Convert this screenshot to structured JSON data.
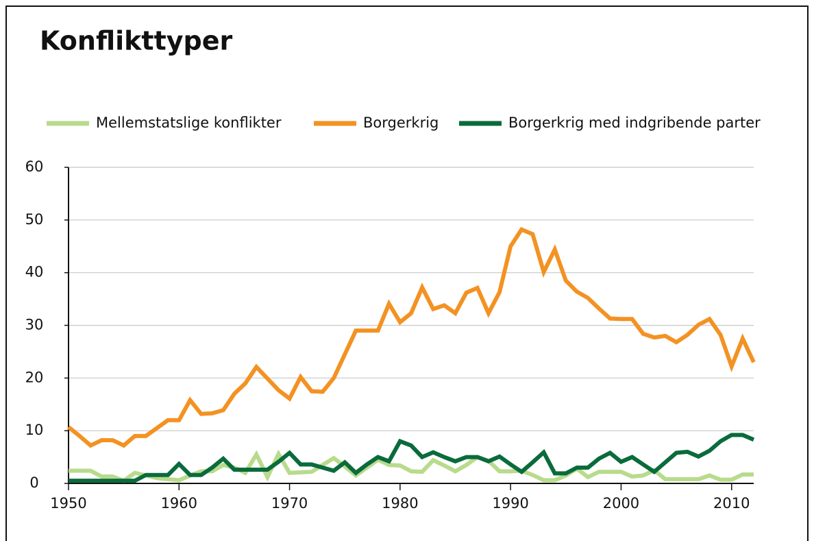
{
  "chart_data": {
    "type": "line",
    "title": "Konflikttyper",
    "x": [
      1950,
      1951,
      1952,
      1953,
      1954,
      1955,
      1956,
      1957,
      1958,
      1959,
      1960,
      1961,
      1962,
      1963,
      1964,
      1965,
      1966,
      1967,
      1968,
      1969,
      1970,
      1971,
      1972,
      1973,
      1974,
      1975,
      1976,
      1977,
      1978,
      1979,
      1980,
      1981,
      1982,
      1983,
      1984,
      1985,
      1986,
      1987,
      1988,
      1989,
      1990,
      1991,
      1992,
      1993,
      1994,
      1995,
      1996,
      1997,
      1998,
      1999,
      2000,
      2001,
      2002,
      2003,
      2004,
      2005,
      2006,
      2007,
      2008,
      2009,
      2010,
      2011,
      2012
    ],
    "series": [
      {
        "name": "Mellemstatslige konflikter",
        "color": "#b8db8c",
        "values": [
          2.4,
          2.4,
          2.4,
          1.3,
          1.3,
          0.5,
          2,
          1.5,
          1,
          0.8,
          0.6,
          1.5,
          2.3,
          2.3,
          3.5,
          3,
          2,
          5.5,
          1.2,
          5.6,
          2,
          2.1,
          2.2,
          3.5,
          4.8,
          3.2,
          1.5,
          3,
          4.5,
          3.5,
          3.4,
          2.3,
          2.2,
          4.4,
          3.4,
          2.3,
          3.5,
          5,
          4.3,
          2.3,
          2.3,
          2.4,
          1.6,
          0.6,
          0.6,
          1.5,
          2.8,
          1.2,
          2.2,
          2.2,
          2.2,
          1.3,
          1.5,
          2.5,
          0.8,
          0.8,
          0.8,
          0.8,
          1.5,
          0.7,
          0.7,
          1.7,
          1.7
        ]
      },
      {
        "name": "Borgerkrig",
        "color": "#f39223",
        "values": [
          10.7,
          9,
          7.2,
          8.2,
          8.2,
          7.2,
          9,
          9,
          10.5,
          12,
          12,
          15.8,
          13.2,
          13.3,
          13.9,
          17,
          19,
          22.1,
          19.9,
          17.7,
          16.1,
          20.2,
          17.5,
          17.4,
          20,
          24.5,
          29,
          29,
          29,
          34.1,
          30.6,
          32.3,
          37.2,
          33.1,
          33.8,
          32.3,
          36.2,
          37.1,
          32.3,
          36.3,
          45,
          48.2,
          47.3,
          40.1,
          44.4,
          38.5,
          36.4,
          35.2,
          33.2,
          31.3,
          31.2,
          31.2,
          28.4,
          27.7,
          28,
          26.8,
          28.2,
          30.1,
          31.2,
          28.2,
          22.2,
          27.5,
          23
        ]
      },
      {
        "name": "Borgerkrig med indgribende parter",
        "color": "#0a6b3c",
        "values": [
          0.5,
          0.5,
          0.5,
          0.5,
          0.5,
          0.5,
          0.5,
          1.6,
          1.6,
          1.6,
          3.7,
          1.6,
          1.6,
          3,
          4.7,
          2.6,
          2.6,
          2.6,
          2.6,
          4.1,
          5.8,
          3.6,
          3.6,
          3,
          2.4,
          4,
          2,
          3.6,
          5,
          4.2,
          8,
          7.2,
          5,
          5.9,
          5,
          4.2,
          5,
          5,
          4.2,
          5.1,
          3.6,
          2.2,
          4,
          5.9,
          1.9,
          1.9,
          3,
          3,
          4.7,
          5.8,
          4.1,
          5,
          3.6,
          2.2,
          4,
          5.8,
          6,
          5.1,
          6.2,
          8,
          9.2,
          9.2,
          8.3
        ]
      }
    ],
    "xlim": [
      1950,
      2012
    ],
    "xticks": [
      1950,
      1960,
      1970,
      1980,
      1990,
      2000,
      2010
    ],
    "ylim": [
      0,
      60
    ],
    "yticks": [
      0,
      10,
      20,
      30,
      40,
      50,
      60
    ],
    "grid": true
  }
}
